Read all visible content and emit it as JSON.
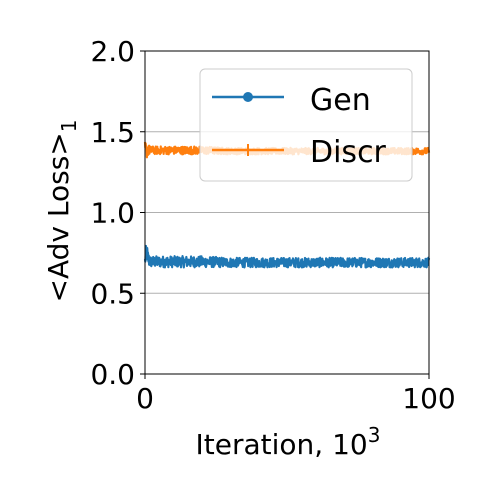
{
  "chart_data": {
    "type": "line",
    "title": "",
    "xlabel": {
      "main": "Iteration, 10",
      "sup": "3"
    },
    "ylabel": {
      "main": "<Adv Loss>",
      "sub": "1"
    },
    "xlim": [
      0,
      100
    ],
    "ylim": [
      0.0,
      2.0
    ],
    "x_ticks": [
      0,
      100
    ],
    "x_tick_labels": [
      "0",
      "100"
    ],
    "y_ticks": [
      0.0,
      0.5,
      1.0,
      1.5,
      2.0
    ],
    "y_tick_labels": [
      "0.0",
      "0.5",
      "1.0",
      "1.5",
      "2.0"
    ],
    "grid": "y-major",
    "legend_placement": "top-right",
    "series": [
      {
        "name": "Gen",
        "color": "#1f77b4",
        "marker": "circle",
        "x": [
          0,
          0.5,
          1,
          1.5,
          2,
          3,
          5,
          10,
          20,
          30,
          40,
          50,
          60,
          70,
          80,
          90,
          100
        ],
        "mean": [
          0.7,
          0.76,
          0.72,
          0.7,
          0.695,
          0.695,
          0.695,
          0.695,
          0.695,
          0.69,
          0.69,
          0.69,
          0.69,
          0.69,
          0.69,
          0.69,
          0.69
        ],
        "spread": [
          0.04,
          0.06,
          0.05,
          0.04,
          0.035,
          0.035,
          0.035,
          0.035,
          0.035,
          0.03,
          0.03,
          0.03,
          0.03,
          0.03,
          0.03,
          0.03,
          0.03
        ]
      },
      {
        "name": "Discr",
        "color": "#ff7f0e",
        "marker": "plus",
        "x": [
          0,
          0.5,
          1,
          1.5,
          2,
          3,
          5,
          10,
          20,
          30,
          40,
          50,
          60,
          70,
          80,
          90,
          100
        ],
        "mean": [
          1.4,
          1.38,
          1.39,
          1.385,
          1.385,
          1.385,
          1.385,
          1.385,
          1.385,
          1.38,
          1.38,
          1.38,
          1.38,
          1.38,
          1.38,
          1.38,
          1.38
        ],
        "spread": [
          0.04,
          0.05,
          0.04,
          0.03,
          0.025,
          0.025,
          0.025,
          0.025,
          0.025,
          0.02,
          0.02,
          0.02,
          0.02,
          0.02,
          0.02,
          0.02,
          0.02
        ]
      }
    ]
  }
}
